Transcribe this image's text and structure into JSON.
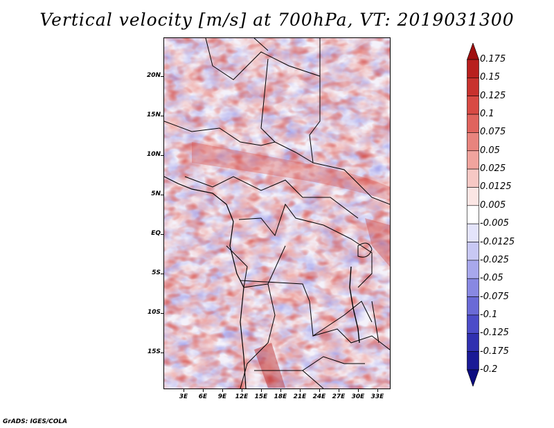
{
  "title": "Vertical velocity [m/s] at 700hPa, VT: 2019031300",
  "credit": "GrADS: IGES/COLA",
  "map": {
    "variable": "Vertical velocity",
    "units": "m/s",
    "level": "700hPa",
    "valid_time": "2019031300",
    "lat_labels": [
      "20N",
      "15N",
      "10N",
      "5N",
      "EQ",
      "5S",
      "10S",
      "15S"
    ],
    "lon_labels": [
      "3E",
      "6E",
      "9E",
      "12E",
      "15E",
      "18E",
      "21E",
      "24E",
      "27E",
      "30E",
      "33E"
    ]
  },
  "colorbar": {
    "levels": [
      "0.175",
      "0.15",
      "0.125",
      "0.1",
      "0.075",
      "0.05",
      "0.025",
      "0.0125",
      "0.005",
      "-0.005",
      "-0.0125",
      "-0.025",
      "-0.05",
      "-0.075",
      "-0.1",
      "-0.125",
      "-0.175",
      "-0.2"
    ],
    "colors": [
      "#a01010",
      "#b8201e",
      "#c8322e",
      "#d84a44",
      "#e0645e",
      "#e8847e",
      "#f0a49e",
      "#f6c8c4",
      "#fbe6e4",
      "#ffffff",
      "#e4e4fb",
      "#c8c8f4",
      "#a8a8ec",
      "#8888e2",
      "#6a6ad6",
      "#4c4cc8",
      "#3030b0",
      "#1a1a96",
      "#0c0c80"
    ]
  }
}
